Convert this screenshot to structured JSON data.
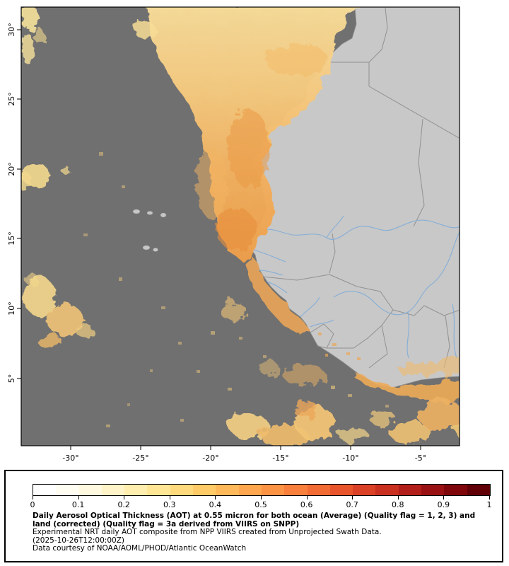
{
  "figure": {
    "map": {
      "y_axis": {
        "ticks": [
          "30°",
          "25°",
          "20°",
          "15°",
          "10°",
          "5°"
        ]
      },
      "x_axis": {
        "ticks": [
          "-30°",
          "-25°",
          "-20°",
          "-15°",
          "-10°",
          "-5°"
        ]
      }
    },
    "colorbar": {
      "tick_labels": [
        "0",
        "0.1",
        "0.2",
        "0.3",
        "0.4",
        "0.5",
        "0.6",
        "0.7",
        "0.8",
        "0.9",
        "1"
      ],
      "segments": [
        "#ffffff",
        "#fffdf2",
        "#fff9e0",
        "#fff4c8",
        "#ffeeae",
        "#ffe694",
        "#ffda7c",
        "#ffcb68",
        "#ffb95b",
        "#ffa64e",
        "#fd9345",
        "#f97f3c",
        "#f26a34",
        "#e8552c",
        "#da4126",
        "#c93020",
        "#b21e1a",
        "#9a1113",
        "#7f070c",
        "#600006"
      ]
    },
    "caption": {
      "title_bold": "Daily Aerosol Optical Thickness (AOT) at 0.55 micron for both ocean (Average) (Quality flag = 1, 2, 3) and land (corrected) (Quality flag = 3a derived from VIIRS on SNPP)",
      "line2": "Experimental NRT daily AOT composite from NPP VIIRS created from Unprojected Swath Data.",
      "line3": "(2025-10-26T12:00:00Z)",
      "line4": "Data courtesy of NOAA/AOML/PHOD/Atlantic OceanWatch"
    },
    "colors": {
      "ocean_no_data": "#707070",
      "land": "#c8c8c8",
      "country_border": "#919191",
      "river": "#86aed6",
      "aerosol_low": "#f8dd9a",
      "aerosol_mid": "#f2ae5c",
      "aerosol_high": "#ec9a45"
    }
  },
  "chart_data": {
    "type": "heatmap",
    "title": "Daily Aerosol Optical Thickness (AOT) at 0.55 micron",
    "x_ticks": [
      -30,
      -25,
      -20,
      -15,
      -10,
      -5
    ],
    "y_ticks": [
      30,
      25,
      20,
      15,
      10,
      5
    ],
    "colorbar_range": [
      0,
      1
    ],
    "colorbar_ticks": [
      0,
      0.1,
      0.2,
      0.3,
      0.4,
      0.5,
      0.6,
      0.7,
      0.8,
      0.9,
      1
    ],
    "legend_position": "bottom"
  }
}
